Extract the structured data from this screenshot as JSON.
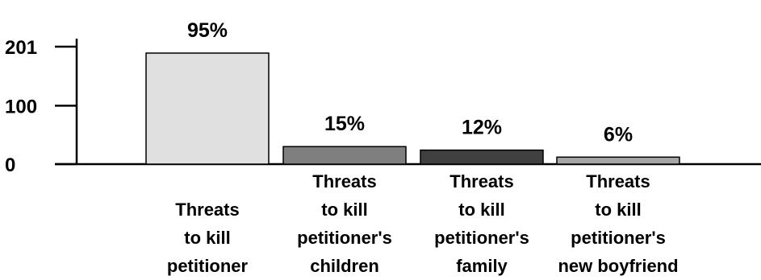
{
  "chart_data": {
    "type": "bar",
    "title": "",
    "xlabel": "",
    "ylabel": "",
    "ylim": [
      0,
      201
    ],
    "yticks": [
      0,
      100,
      201
    ],
    "ytick_labels": [
      "0",
      "100",
      "201"
    ],
    "grid": false,
    "categories": [
      [
        "Threats",
        "to kill",
        "petitioner"
      ],
      [
        "Threats",
        "to kill",
        "petitioner's",
        "children"
      ],
      [
        "Threats",
        "to kill",
        "petitioner's",
        "family"
      ],
      [
        "Threats",
        "to kill",
        "petitioner's",
        "new boyfriend"
      ]
    ],
    "values": [
      190,
      30,
      24,
      12
    ],
    "data_labels": [
      "95%",
      "15%",
      "12%",
      "6%"
    ],
    "colors": [
      "#e0e0e0",
      "#7f7f7f",
      "#404040",
      "#a6a6a6"
    ]
  }
}
